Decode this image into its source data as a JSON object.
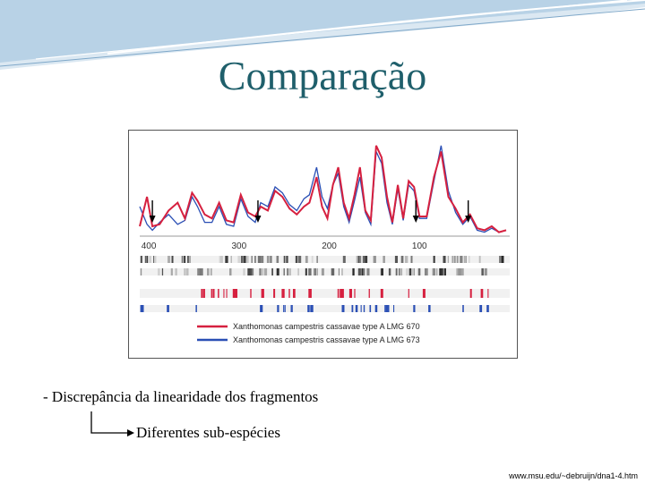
{
  "slide": {
    "title": "Comparação",
    "bullet": "- Discrepância da linearidade dos fragmentos",
    "subitem": "Diferentes sub-espécies",
    "source": "www.msu.edu/~debruijn/dna1-4.htm"
  },
  "colors": {
    "title": "#1f5f6b",
    "series_red": "#d6203f",
    "series_blue": "#2a4fb5",
    "header_band": "#8fb8d8"
  },
  "icons": [
    "arrow-down-icon",
    "bracket-arrow-icon"
  ],
  "chart_data": {
    "type": "line",
    "xlabel": "",
    "ylabel": "",
    "x_ticks": [
      400,
      300,
      200,
      100
    ],
    "xlim": [
      410,
      0
    ],
    "ylim": [
      0,
      100
    ],
    "grid": false,
    "legend_position": "bottom",
    "markers_at": [
      396,
      279,
      104,
      46
    ],
    "x": [
      410,
      402,
      396,
      388,
      378,
      368,
      360,
      352,
      346,
      338,
      330,
      322,
      314,
      306,
      298,
      290,
      282,
      276,
      268,
      260,
      252,
      244,
      236,
      228,
      222,
      214,
      208,
      202,
      196,
      190,
      184,
      178,
      172,
      166,
      160,
      154,
      148,
      142,
      136,
      130,
      124,
      118,
      112,
      106,
      100,
      92,
      84,
      76,
      68,
      60,
      52,
      44,
      36,
      28,
      20,
      12,
      4
    ],
    "series": [
      {
        "name": "Xanthomonas campestris cassavae type A   LMG 670",
        "color": "#d6203f",
        "values": [
          10,
          40,
          10,
          12,
          26,
          34,
          18,
          44,
          36,
          22,
          18,
          34,
          16,
          14,
          42,
          24,
          20,
          30,
          26,
          46,
          40,
          28,
          22,
          30,
          34,
          60,
          30,
          18,
          52,
          70,
          34,
          18,
          42,
          70,
          26,
          16,
          92,
          80,
          40,
          14,
          52,
          18,
          56,
          50,
          20,
          20,
          60,
          86,
          40,
          28,
          14,
          22,
          8,
          6,
          10,
          4,
          6
        ]
      },
      {
        "name": "Xanthomonas campestris cassavae type A   LMG 673",
        "color": "#2a4fb5",
        "values": [
          30,
          12,
          6,
          14,
          22,
          12,
          16,
          40,
          30,
          14,
          14,
          30,
          12,
          10,
          38,
          20,
          14,
          34,
          30,
          50,
          44,
          32,
          26,
          38,
          42,
          70,
          40,
          28,
          52,
          64,
          30,
          14,
          36,
          60,
          24,
          12,
          86,
          74,
          34,
          12,
          48,
          16,
          52,
          46,
          18,
          18,
          56,
          92,
          46,
          24,
          12,
          20,
          6,
          4,
          8,
          4,
          6
        ]
      }
    ],
    "gel_lanes": 4
  }
}
